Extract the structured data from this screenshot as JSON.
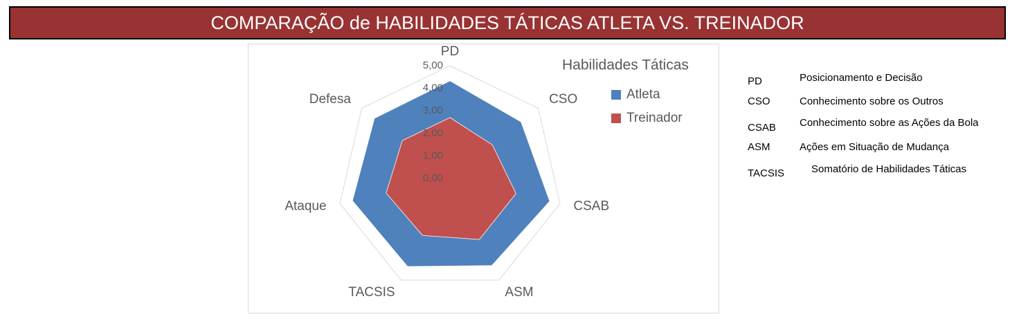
{
  "banner_title": "COMPARAÇÃO de HABILIDADES TÁTICAS ATLETA VS. TREINADOR",
  "chart_data": {
    "type": "radar",
    "title": "Habilidades Táticas",
    "categories": [
      "PD",
      "CSO",
      "CSAB",
      "ASM",
      "TACSIS",
      "Ataque",
      "Defesa"
    ],
    "series": [
      {
        "name": "Atleta",
        "color": "#4f81bd",
        "values": [
          4.3,
          4.0,
          4.5,
          4.25,
          4.3,
          4.4,
          4.25
        ]
      },
      {
        "name": "Treinador",
        "color": "#c0504d",
        "values": [
          2.7,
          2.4,
          3.0,
          3.0,
          2.8,
          2.9,
          2.7
        ]
      }
    ],
    "ylim": [
      0,
      5
    ],
    "yticks": [
      {
        "value": 0,
        "label": "0,00"
      },
      {
        "value": 1,
        "label": "1,00"
      },
      {
        "value": 2,
        "label": "2,00"
      },
      {
        "value": 3,
        "label": "3,00"
      },
      {
        "value": 4,
        "label": "4,00"
      },
      {
        "value": 5,
        "label": "5,00"
      }
    ],
    "grid": true,
    "legend": "top-right"
  },
  "glossary": [
    {
      "abbr": "PD",
      "text": "Posicionamento e Decisão"
    },
    {
      "abbr": "CSO",
      "text": "Conhecimento sobre os Outros"
    },
    {
      "abbr": "CSAB",
      "text": "Conhecimento sobre as Ações da Bola"
    },
    {
      "abbr": "ASM",
      "text": "Ações em Situação de Mudança"
    },
    {
      "abbr": "TACSIS",
      "text": "Somatório de Habilidades Táticas"
    }
  ]
}
